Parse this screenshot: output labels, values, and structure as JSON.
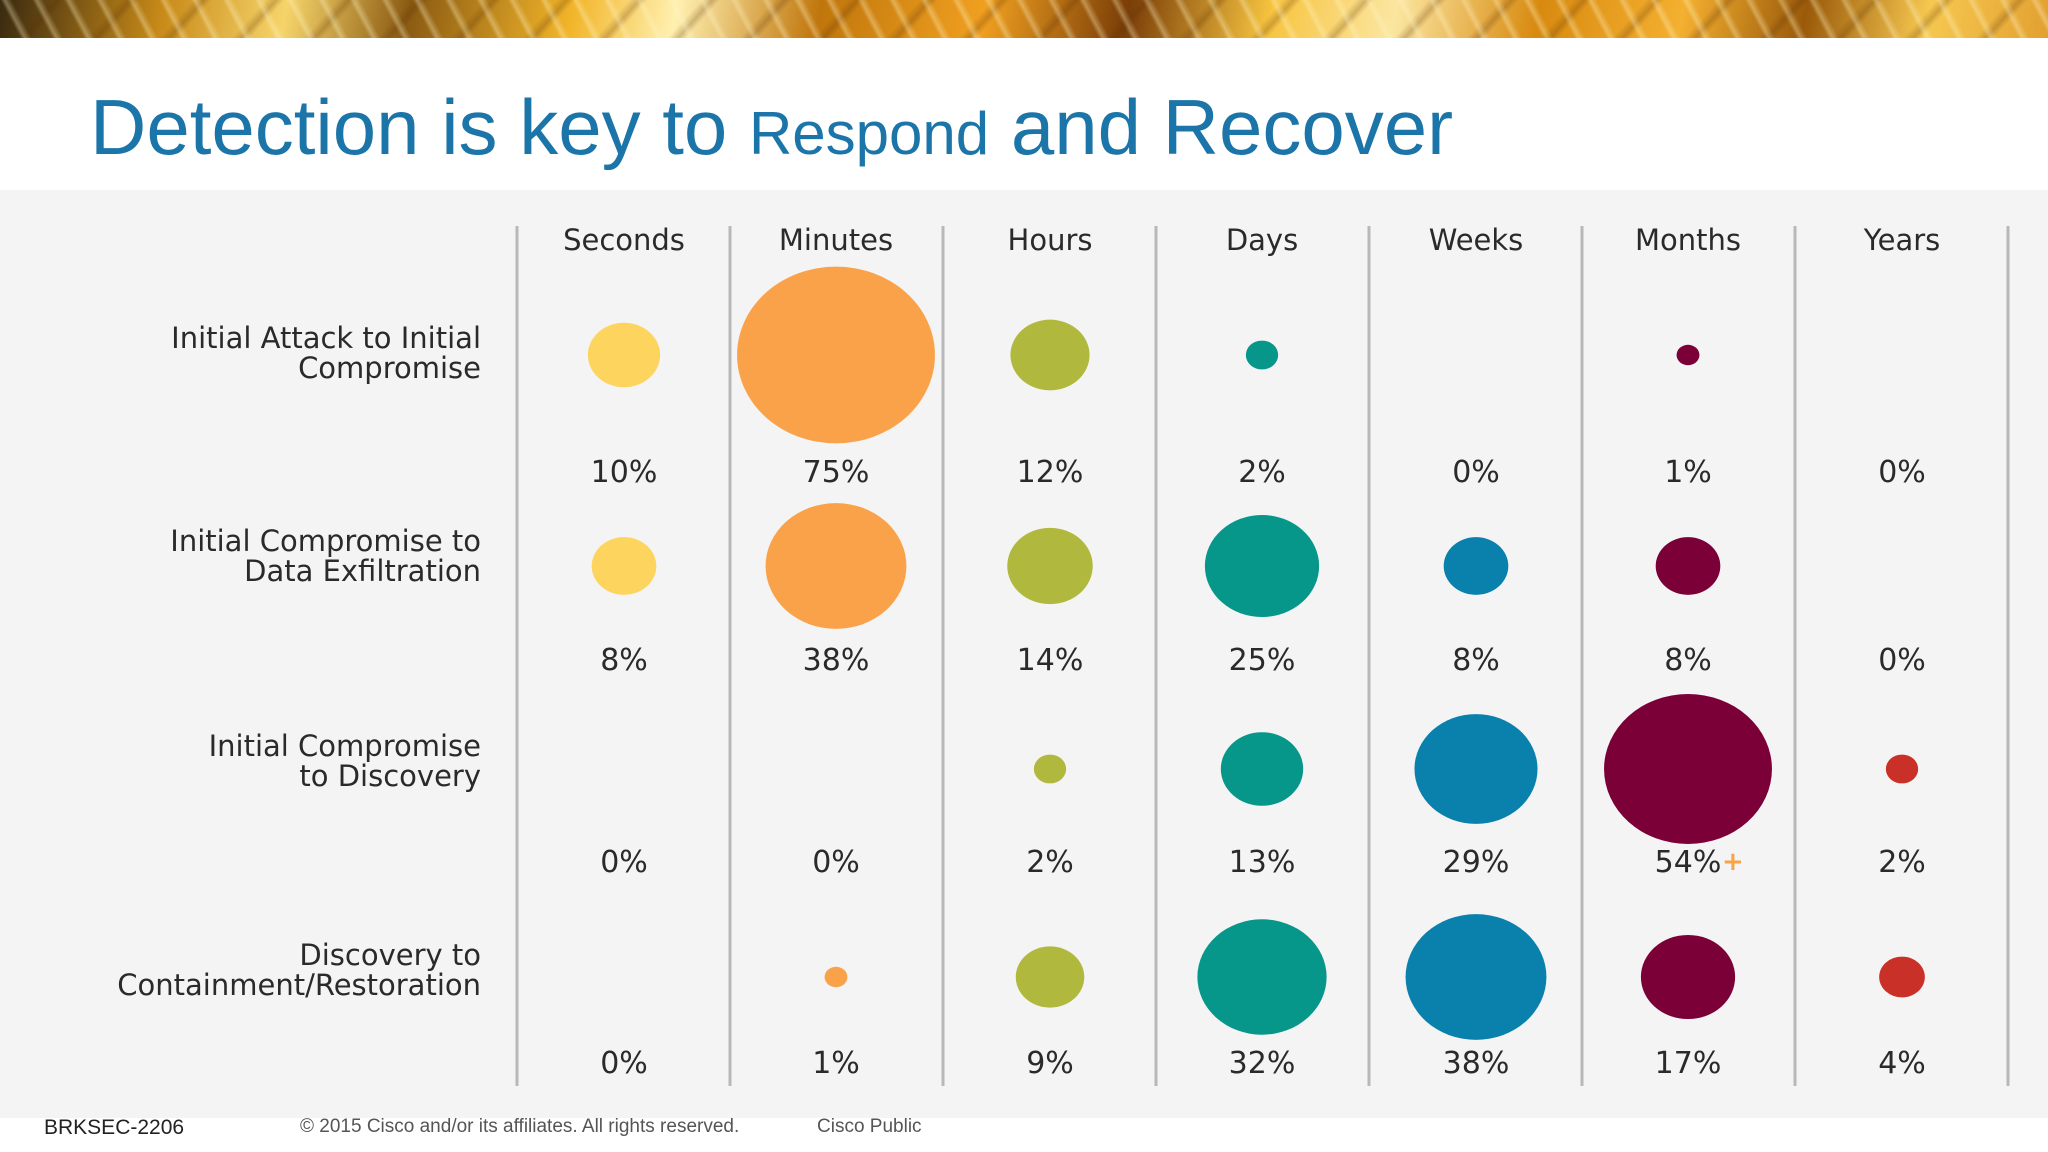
{
  "title": {
    "part1": "Detection is key to ",
    "part2": "Respond",
    "part3": " and Recover"
  },
  "footer": {
    "session_id": "BRKSEC-2206",
    "copyright": "© 2015 Cisco and/or its affiliates. All rights reserved.",
    "classification": "Cisco Public"
  },
  "chart_data": {
    "type": "bubble-matrix",
    "title": "Detection is key to Respond and Recover",
    "columns": [
      "Seconds",
      "Minutes",
      "Hours",
      "Days",
      "Weeks",
      "Months",
      "Years"
    ],
    "column_colors": [
      "#fcd45e",
      "#f9a24a",
      "#b0b93d",
      "#07968a",
      "#0a80ad",
      "#7a0037",
      "#c83028"
    ],
    "rows": [
      {
        "label_lines": [
          "Initial Attack to Initial",
          "Compromise"
        ],
        "values": [
          10,
          75,
          12,
          2,
          0,
          1,
          0
        ],
        "value_labels": [
          "10%",
          "75%",
          "12%",
          "2%",
          "0%",
          "1%",
          "0%"
        ]
      },
      {
        "label_lines": [
          "Initial Compromise to",
          "Data Exfiltration"
        ],
        "values": [
          8,
          38,
          14,
          25,
          8,
          8,
          0
        ],
        "value_labels": [
          "8%",
          "38%",
          "14%",
          "25%",
          "8%",
          "8%",
          "0%"
        ]
      },
      {
        "label_lines": [
          "Initial Compromise",
          "to Discovery"
        ],
        "values": [
          0,
          0,
          2,
          13,
          29,
          54,
          2
        ],
        "value_labels": [
          "0%",
          "0%",
          "2%",
          "13%",
          "29%",
          "54%",
          "2%"
        ]
      },
      {
        "label_lines": [
          "Discovery to",
          "Containment/Restoration"
        ],
        "values": [
          0,
          1,
          9,
          32,
          38,
          17,
          4
        ],
        "value_labels": [
          "0%",
          "1%",
          "9%",
          "32%",
          "38%",
          "17%",
          "4%"
        ]
      }
    ],
    "annotations": [
      {
        "row": 2,
        "column": 5,
        "marker": "+",
        "color": "#f9a24a"
      }
    ],
    "unit": "%"
  }
}
